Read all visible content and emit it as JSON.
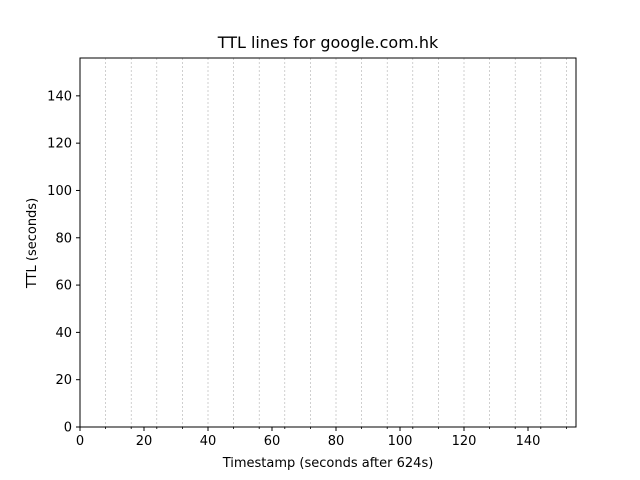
{
  "chart_data": {
    "type": "line",
    "title": "TTL lines for google.com.hk",
    "xlabel": "Timestamp (seconds after 624s)",
    "ylabel": "TTL (seconds)",
    "xlim": [
      0,
      155
    ],
    "ylim": [
      0,
      156
    ],
    "x_ticks": [
      0,
      20,
      40,
      60,
      80,
      100,
      120,
      140
    ],
    "y_ticks": [
      0,
      20,
      40,
      60,
      80,
      100,
      120,
      140
    ],
    "vertical_gridlines_x": [
      8,
      16,
      24,
      32,
      40,
      48,
      56,
      64,
      72,
      80,
      88,
      96,
      104,
      112,
      120,
      128,
      136,
      144,
      152
    ],
    "x_grid": "dashed",
    "y_grid": false,
    "series": [],
    "colors": {
      "grid": "#b0b0b0",
      "axes": "#000000",
      "background": "#ffffff"
    }
  }
}
